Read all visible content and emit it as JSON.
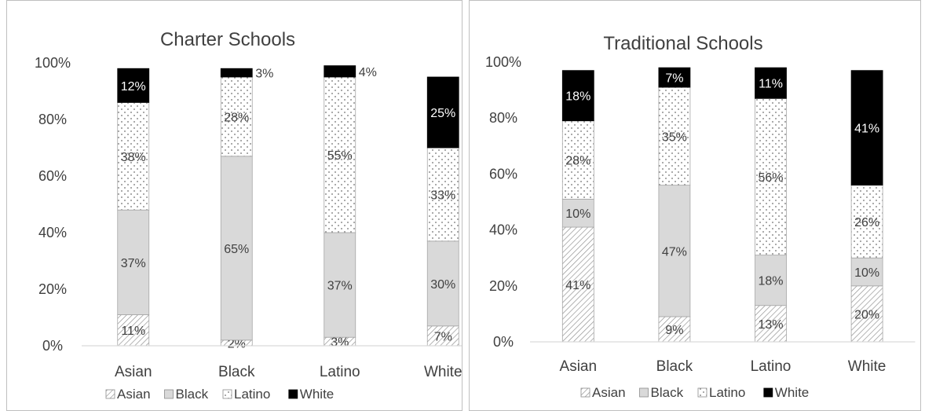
{
  "chart_data": [
    {
      "type": "bar",
      "stacked": true,
      "title": "Charter Schools",
      "categories": [
        "Asian",
        "Black",
        "Latino",
        "White"
      ],
      "yticks": [
        "0%",
        "20%",
        "40%",
        "60%",
        "80%",
        "100%"
      ],
      "ylim": [
        0,
        100
      ],
      "grid": false,
      "legend_position": "bottom",
      "series": [
        {
          "name": "Asian",
          "pattern": "hatch",
          "values": [
            11,
            2,
            3,
            7
          ],
          "labels": [
            "11%",
            "2%",
            "3%",
            "7%"
          ]
        },
        {
          "name": "Black",
          "pattern": "gray",
          "values": [
            37,
            65,
            37,
            30
          ],
          "labels": [
            "37%",
            "65%",
            "37%",
            "30%"
          ]
        },
        {
          "name": "Latino",
          "pattern": "dots",
          "values": [
            38,
            28,
            55,
            33
          ],
          "labels": [
            "38%",
            "28%",
            "55%",
            "33%"
          ]
        },
        {
          "name": "White",
          "pattern": "black",
          "values": [
            12,
            3,
            4,
            25
          ],
          "labels": [
            "12%",
            "3%",
            "4%",
            "25%"
          ]
        }
      ]
    },
    {
      "type": "bar",
      "stacked": true,
      "title": "Traditional Schools",
      "categories": [
        "Asian",
        "Black",
        "Latino",
        "White"
      ],
      "yticks": [
        "0%",
        "20%",
        "40%",
        "60%",
        "80%",
        "100%"
      ],
      "ylim": [
        0,
        100
      ],
      "grid": false,
      "legend_position": "bottom",
      "series": [
        {
          "name": "Asian",
          "pattern": "hatch",
          "values": [
            41,
            9,
            13,
            20
          ],
          "labels": [
            "41%",
            "9%",
            "13%",
            "20%"
          ]
        },
        {
          "name": "Black",
          "pattern": "gray",
          "values": [
            10,
            47,
            18,
            10
          ],
          "labels": [
            "10%",
            "47%",
            "18%",
            "10%"
          ]
        },
        {
          "name": "Latino",
          "pattern": "dots",
          "values": [
            28,
            35,
            56,
            26
          ],
          "labels": [
            "28%",
            "35%",
            "56%",
            "26%"
          ]
        },
        {
          "name": "White",
          "pattern": "black",
          "values": [
            18,
            7,
            11,
            41
          ],
          "labels": [
            "18%",
            "7%",
            "11%",
            "41%"
          ]
        }
      ]
    }
  ],
  "colors": {
    "gray": "#d9d9d9",
    "black": "#000000",
    "axis": "#d9d9d9",
    "text": "#404040"
  }
}
